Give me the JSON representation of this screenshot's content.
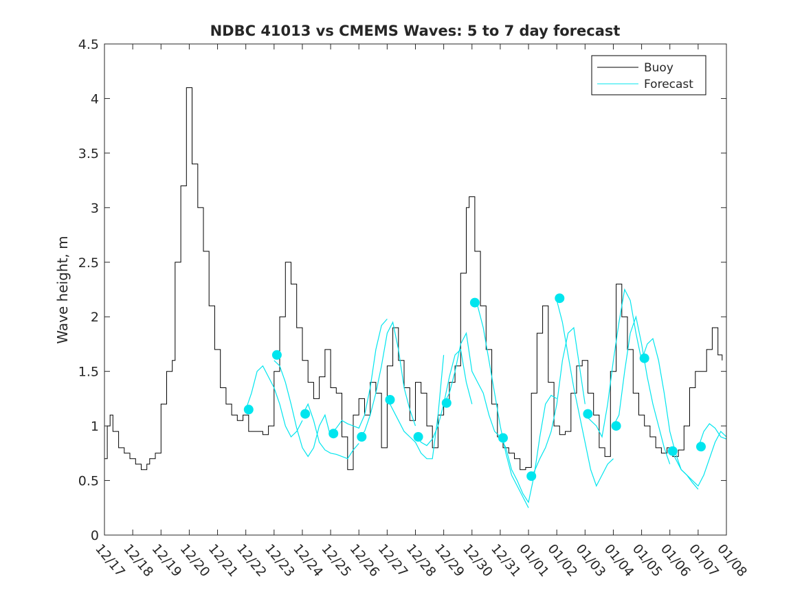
{
  "chart_data": {
    "type": "line",
    "title": "NDBC 41013 vs CMEMS Waves: 5 to 7 day forecast",
    "xlabel": "",
    "ylabel": "Wave height, m",
    "x_unit": "days since 12/17",
    "xlim": [
      0,
      22
    ],
    "ylim": [
      0,
      4.5
    ],
    "grid": false,
    "legend_position": "top-right",
    "x_tick_labels": [
      "12/17",
      "12/18",
      "12/19",
      "12/20",
      "12/21",
      "12/22",
      "12/23",
      "12/24",
      "12/25",
      "12/26",
      "12/27",
      "12/28",
      "12/29",
      "12/30",
      "12/31",
      "01/01",
      "01/02",
      "01/03",
      "01/04",
      "01/05",
      "01/06",
      "01/07",
      "01/08"
    ],
    "y_ticks": [
      0,
      0.5,
      1,
      1.5,
      2,
      2.5,
      3,
      3.5,
      4,
      4.5
    ],
    "y_tick_labels": [
      "0",
      "0.5",
      "1",
      "1.5",
      "2",
      "2.5",
      "3",
      "3.5",
      "4",
      "4.5"
    ],
    "legend": [
      {
        "name": "Buoy",
        "color": "#000000"
      },
      {
        "name": "Forecast",
        "color": "#00e5ee"
      }
    ],
    "buoy": {
      "name": "Buoy",
      "color": "#000000",
      "x": [
        0,
        0.1,
        0.2,
        0.3,
        0.5,
        0.7,
        0.9,
        1.1,
        1.3,
        1.5,
        1.6,
        1.8,
        2.0,
        2.2,
        2.4,
        2.5,
        2.7,
        2.9,
        3.1,
        3.3,
        3.5,
        3.7,
        3.9,
        4.1,
        4.3,
        4.5,
        4.7,
        4.9,
        5.1,
        5.3,
        5.5,
        5.6,
        5.8,
        6.0,
        6.2,
        6.4,
        6.6,
        6.8,
        7.0,
        7.2,
        7.4,
        7.6,
        7.8,
        8.0,
        8.2,
        8.4,
        8.6,
        8.8,
        9.0,
        9.2,
        9.4,
        9.6,
        9.8,
        10.0,
        10.2,
        10.4,
        10.6,
        10.8,
        11.0,
        11.2,
        11.4,
        11.6,
        11.8,
        12.0,
        12.2,
        12.4,
        12.6,
        12.8,
        12.9,
        13.1,
        13.3,
        13.5,
        13.7,
        13.9,
        14.1,
        14.3,
        14.5,
        14.7,
        14.9,
        15.1,
        15.3,
        15.5,
        15.7,
        15.9,
        16.1,
        16.3,
        16.5,
        16.7,
        16.9,
        17.1,
        17.3,
        17.5,
        17.7,
        17.9,
        18.1,
        18.3,
        18.5,
        18.7,
        18.9,
        19.1,
        19.3,
        19.5,
        19.7,
        19.9,
        20.1,
        20.3,
        20.5,
        20.7,
        20.9,
        21.1,
        21.3,
        21.5,
        21.7,
        21.85
      ],
      "values": [
        0.7,
        1.0,
        1.1,
        0.95,
        0.8,
        0.75,
        0.7,
        0.65,
        0.6,
        0.65,
        0.7,
        0.75,
        1.2,
        1.5,
        1.6,
        2.5,
        3.2,
        4.1,
        3.4,
        3.0,
        2.6,
        2.1,
        1.7,
        1.35,
        1.2,
        1.1,
        1.05,
        1.1,
        0.95,
        0.95,
        0.95,
        0.92,
        1.0,
        1.5,
        2.0,
        2.5,
        2.3,
        1.9,
        1.6,
        1.4,
        1.25,
        1.45,
        1.7,
        1.35,
        1.3,
        0.9,
        0.6,
        1.1,
        1.25,
        1.1,
        1.4,
        1.3,
        0.8,
        1.55,
        1.9,
        1.6,
        1.35,
        1.05,
        1.4,
        1.3,
        1.0,
        0.8,
        1.1,
        1.2,
        1.4,
        1.55,
        2.4,
        3.0,
        3.1,
        2.6,
        2.1,
        1.7,
        1.2,
        0.9,
        0.8,
        0.75,
        0.7,
        0.6,
        0.62,
        1.3,
        1.85,
        2.1,
        1.4,
        1.0,
        0.92,
        0.95,
        1.3,
        1.55,
        1.6,
        1.3,
        1.1,
        0.8,
        0.72,
        1.5,
        2.3,
        2.0,
        1.7,
        1.3,
        1.1,
        1.0,
        0.9,
        0.8,
        0.75,
        0.8,
        0.72,
        0.78,
        1.0,
        1.35,
        1.5,
        1.5,
        1.7,
        1.9,
        1.65,
        1.6
      ]
    },
    "forecast": {
      "name": "Forecast",
      "color": "#00e5ee",
      "segments": [
        {
          "x": [
            5.0,
            5.2,
            5.4,
            5.6,
            5.8,
            6.0,
            6.2,
            6.4,
            6.6,
            6.8,
            7.0
          ],
          "values": [
            1.15,
            1.3,
            1.5,
            1.55,
            1.45,
            1.35,
            1.2,
            1.0,
            0.9,
            0.95,
            1.05
          ]
        },
        {
          "x": [
            6.0,
            6.2,
            6.4,
            6.6,
            6.8,
            7.0,
            7.2,
            7.4,
            7.6,
            7.8,
            8.0
          ],
          "values": [
            1.6,
            1.55,
            1.4,
            1.2,
            0.98,
            0.8,
            0.72,
            0.8,
            1.0,
            1.1,
            0.9
          ]
        },
        {
          "x": [
            7.0,
            7.2,
            7.4,
            7.6,
            7.8,
            8.0,
            8.2,
            8.4,
            8.6,
            8.8,
            9.0
          ],
          "values": [
            1.1,
            1.2,
            1.05,
            0.85,
            0.78,
            0.75,
            0.74,
            0.72,
            0.7,
            0.78,
            0.84
          ]
        },
        {
          "x": [
            8.0,
            8.2,
            8.4,
            8.6,
            8.8,
            9.0,
            9.2,
            9.4,
            9.6,
            9.8,
            10.0
          ],
          "values": [
            0.92,
            0.98,
            1.05,
            1.02,
            1.0,
            0.98,
            1.1,
            1.35,
            1.7,
            1.92,
            1.98
          ]
        },
        {
          "x": [
            9.0,
            9.2,
            9.4,
            9.6,
            9.8,
            10.0,
            10.2,
            10.4,
            10.6,
            10.8,
            11.0
          ],
          "values": [
            0.9,
            0.95,
            1.1,
            1.3,
            1.55,
            1.85,
            1.95,
            1.7,
            1.35,
            1.15,
            1.0
          ]
        },
        {
          "x": [
            10.0,
            10.2,
            10.4,
            10.6,
            10.8,
            11.0,
            11.2,
            11.4,
            11.6,
            11.8,
            12.0
          ],
          "values": [
            1.25,
            1.15,
            1.05,
            0.95,
            0.9,
            0.85,
            0.75,
            0.7,
            0.7,
            1.1,
            1.65
          ]
        },
        {
          "x": [
            11.0,
            11.2,
            11.4,
            11.6,
            11.8,
            12.0,
            12.2,
            12.4,
            12.6,
            12.8,
            13.0
          ],
          "values": [
            0.92,
            0.85,
            0.82,
            0.88,
            1.0,
            1.2,
            1.45,
            1.65,
            1.7,
            1.4,
            1.2
          ]
        },
        {
          "x": [
            12.0,
            12.2,
            12.4,
            12.6,
            12.8,
            13.0,
            13.2,
            13.4,
            13.6,
            13.8,
            14.0
          ],
          "values": [
            1.2,
            1.3,
            1.5,
            1.75,
            1.85,
            1.5,
            1.4,
            1.3,
            1.1,
            0.95,
            0.9
          ]
        },
        {
          "x": [
            13.0,
            13.2,
            13.4,
            13.6,
            13.8,
            14.0,
            14.2,
            14.4,
            14.6,
            14.8,
            15.0
          ],
          "values": [
            2.15,
            2.1,
            1.9,
            1.6,
            1.3,
            1.0,
            0.75,
            0.55,
            0.45,
            0.35,
            0.25
          ]
        },
        {
          "x": [
            14.0,
            14.2,
            14.4,
            14.6,
            14.8,
            15.0,
            15.2,
            15.4,
            15.6,
            15.8,
            16.0
          ],
          "values": [
            0.9,
            0.8,
            0.6,
            0.5,
            0.38,
            0.3,
            0.55,
            0.9,
            1.2,
            1.28,
            1.25
          ]
        },
        {
          "x": [
            15.0,
            15.2,
            15.4,
            15.6,
            15.8,
            16.0,
            16.2,
            16.4,
            16.6,
            16.8,
            17.0
          ],
          "values": [
            0.55,
            0.58,
            0.7,
            0.8,
            0.95,
            1.2,
            1.6,
            1.85,
            1.9,
            1.55,
            1.2
          ]
        },
        {
          "x": [
            16.0,
            16.2,
            16.4,
            16.6,
            16.8,
            17.0,
            17.2,
            17.4,
            17.6,
            17.8,
            18.0
          ],
          "values": [
            2.15,
            1.95,
            1.65,
            1.35,
            1.1,
            0.85,
            0.6,
            0.45,
            0.55,
            0.65,
            0.7
          ]
        },
        {
          "x": [
            17.0,
            17.2,
            17.4,
            17.6,
            17.8,
            18.0,
            18.2,
            18.4,
            18.6,
            18.8,
            19.0
          ],
          "values": [
            1.1,
            1.05,
            1.0,
            0.9,
            1.2,
            1.6,
            1.95,
            2.25,
            2.15,
            1.85,
            1.6
          ]
        },
        {
          "x": [
            18.0,
            18.2,
            18.4,
            18.6,
            18.8,
            19.0,
            19.2,
            19.4,
            19.6,
            19.8,
            20.0
          ],
          "values": [
            1.0,
            1.1,
            1.5,
            1.85,
            2.0,
            1.75,
            1.45,
            1.2,
            1.0,
            0.8,
            0.65
          ]
        },
        {
          "x": [
            19.0,
            19.2,
            19.4,
            19.6,
            19.8,
            20.0,
            20.2,
            20.4,
            20.6,
            20.8,
            21.0
          ],
          "values": [
            1.6,
            1.75,
            1.8,
            1.6,
            1.3,
            0.95,
            0.75,
            0.6,
            0.55,
            0.48,
            0.42
          ]
        },
        {
          "x": [
            20.0,
            20.2,
            20.4,
            20.6,
            20.8,
            21.0,
            21.2,
            21.4,
            21.6,
            21.8,
            22.0
          ],
          "values": [
            0.8,
            0.7,
            0.6,
            0.55,
            0.5,
            0.45,
            0.55,
            0.7,
            0.85,
            0.95,
            0.9
          ]
        },
        {
          "x": [
            21.0,
            21.2,
            21.4,
            21.6,
            21.8,
            22.0
          ],
          "values": [
            0.8,
            0.95,
            1.02,
            0.98,
            0.9,
            0.88
          ]
        }
      ],
      "markers": {
        "x": [
          5.1,
          6.1,
          7.1,
          8.1,
          9.1,
          10.1,
          11.1,
          12.1,
          13.1,
          14.1,
          15.1,
          16.1,
          17.1,
          18.1,
          19.1,
          20.1,
          21.1
        ],
        "values": [
          1.15,
          1.65,
          1.11,
          0.93,
          0.9,
          1.24,
          0.9,
          1.21,
          2.13,
          0.89,
          0.54,
          2.17,
          1.11,
          1.0,
          1.62,
          0.77,
          0.81
        ]
      }
    }
  }
}
